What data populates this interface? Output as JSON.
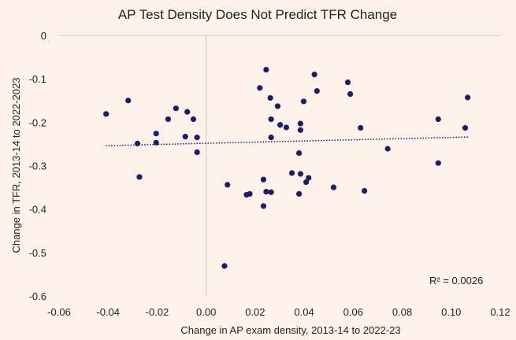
{
  "chart_data": {
    "type": "scatter",
    "title": "AP Test Density Does Not Predict TFR Change",
    "xlabel": "Change in AP exam density, 2013-14 to 2022-23",
    "ylabel": "Change in TFR, 2013-14 to 2022-2023",
    "xlim": [
      -0.06,
      0.12
    ],
    "ylim": [
      -0.6,
      0
    ],
    "x_ticks": [
      "-0.06",
      "-0.04",
      "-0.02",
      "0.00",
      "0.02",
      "0.04",
      "0.06",
      "0.08",
      "0.10",
      "0.12"
    ],
    "y_ticks": [
      "0",
      "-0.1",
      "-0.2",
      "-0.3",
      "-0.4",
      "-0.5",
      "-0.6"
    ],
    "annotation": "R² = 0.0026",
    "trendline": {
      "style": "dotted",
      "x": [
        -0.041,
        0.107
      ],
      "y": [
        -0.254,
        -0.234
      ]
    },
    "marker_color": "#1d1b6b",
    "background_color": "#fdf3ea",
    "points": [
      {
        "x": -0.0408,
        "y": -0.181
      },
      {
        "x": -0.0318,
        "y": -0.15
      },
      {
        "x": -0.028,
        "y": -0.249
      },
      {
        "x": -0.0272,
        "y": -0.326
      },
      {
        "x": -0.0204,
        "y": -0.226
      },
      {
        "x": -0.0204,
        "y": -0.247
      },
      {
        "x": -0.0155,
        "y": -0.193
      },
      {
        "x": -0.0123,
        "y": -0.168
      },
      {
        "x": -0.0085,
        "y": -0.233
      },
      {
        "x": -0.0077,
        "y": -0.176
      },
      {
        "x": -0.0052,
        "y": -0.193
      },
      {
        "x": -0.0037,
        "y": -0.235
      },
      {
        "x": -0.0037,
        "y": -0.269
      },
      {
        "x": 0.0075,
        "y": -0.531
      },
      {
        "x": 0.0087,
        "y": -0.344
      },
      {
        "x": 0.0165,
        "y": -0.367
      },
      {
        "x": 0.0178,
        "y": -0.365
      },
      {
        "x": 0.0219,
        "y": -0.121
      },
      {
        "x": 0.0234,
        "y": -0.332
      },
      {
        "x": 0.0234,
        "y": -0.393
      },
      {
        "x": 0.0245,
        "y": -0.079
      },
      {
        "x": 0.0245,
        "y": -0.36
      },
      {
        "x": 0.0262,
        "y": -0.144
      },
      {
        "x": 0.0265,
        "y": -0.193
      },
      {
        "x": 0.0265,
        "y": -0.235
      },
      {
        "x": 0.0265,
        "y": -0.361
      },
      {
        "x": 0.0292,
        "y": -0.163
      },
      {
        "x": 0.0302,
        "y": -0.206
      },
      {
        "x": 0.0327,
        "y": -0.212
      },
      {
        "x": 0.035,
        "y": -0.317
      },
      {
        "x": 0.0379,
        "y": -0.271
      },
      {
        "x": 0.0379,
        "y": -0.365
      },
      {
        "x": 0.0385,
        "y": -0.203
      },
      {
        "x": 0.0385,
        "y": -0.218
      },
      {
        "x": 0.0385,
        "y": -0.319
      },
      {
        "x": 0.0398,
        "y": -0.152
      },
      {
        "x": 0.0408,
        "y": -0.338
      },
      {
        "x": 0.0418,
        "y": -0.328
      },
      {
        "x": 0.0442,
        "y": -0.09
      },
      {
        "x": 0.0452,
        "y": -0.128
      },
      {
        "x": 0.052,
        "y": -0.35
      },
      {
        "x": 0.0578,
        "y": -0.108
      },
      {
        "x": 0.0588,
        "y": -0.135
      },
      {
        "x": 0.063,
        "y": -0.213
      },
      {
        "x": 0.0646,
        "y": -0.358
      },
      {
        "x": 0.0741,
        "y": -0.261
      },
      {
        "x": 0.0947,
        "y": -0.193
      },
      {
        "x": 0.0947,
        "y": -0.294
      },
      {
        "x": 0.1057,
        "y": -0.213
      },
      {
        "x": 0.1067,
        "y": -0.143
      }
    ]
  }
}
